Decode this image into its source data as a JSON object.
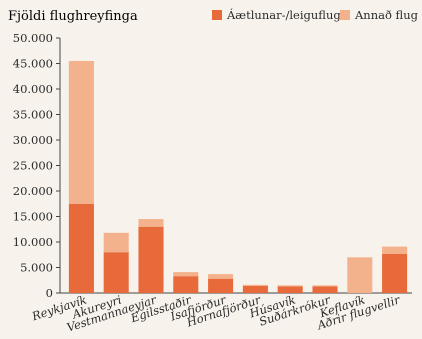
{
  "chart_data": {
    "type": "bar",
    "stacked": true,
    "ylabel": "Fjöldi flughreyfinga",
    "ylim": [
      0,
      50000
    ],
    "yticks": [
      "0",
      "5.000",
      "10.000",
      "15.000",
      "20.000",
      "25.000",
      "30.000",
      "35.000",
      "40.000",
      "45.000",
      "50.000"
    ],
    "ytick_values": [
      0,
      5000,
      10000,
      15000,
      20000,
      25000,
      30000,
      35000,
      40000,
      45000,
      50000
    ],
    "categories": [
      "Reykjavík",
      "Akureyri",
      "Vestmannaeyjar",
      "Egilsstaðir",
      "Ísafjörður",
      "Hornafjörður",
      "Húsavík",
      "Suðárkrókur",
      "Keflavík",
      "Aðrir flugvellir"
    ],
    "series": [
      {
        "name": "Áætlunar-/leiguflug",
        "color": "#e8693a",
        "values": [
          17500,
          8000,
          13000,
          3300,
          2800,
          1400,
          1300,
          1300,
          0,
          7700
        ]
      },
      {
        "name": "Annað flug",
        "color": "#f4b28c",
        "values": [
          28000,
          3800,
          1500,
          800,
          900,
          200,
          200,
          200,
          7000,
          1400
        ]
      }
    ],
    "legend": "top-right",
    "grid": false
  }
}
